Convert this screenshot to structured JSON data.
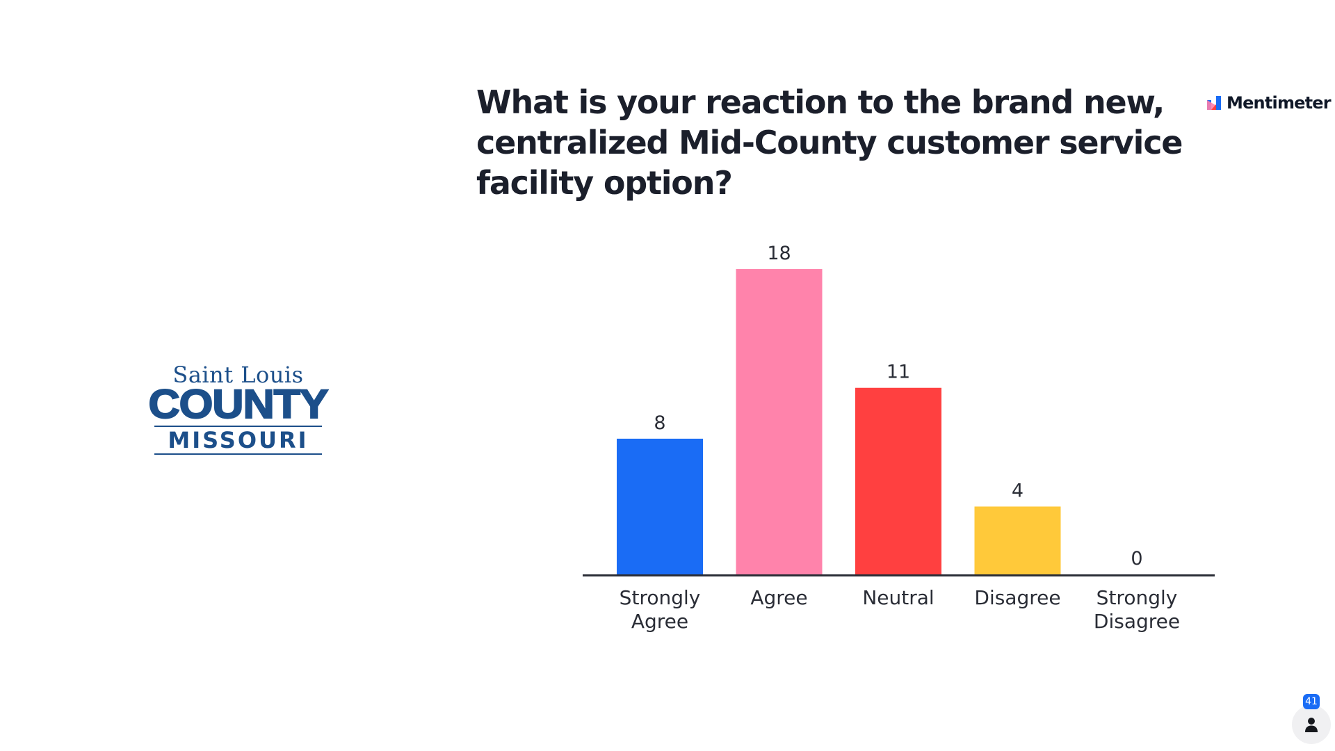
{
  "logo": {
    "line1": "Saint Louis",
    "line2": "COUNTY",
    "line3": "MISSOURI"
  },
  "question": "What is your reaction to the brand new, centralized Mid-County customer service facility option?",
  "brand": {
    "name": "Mentimeter",
    "icon": "mentimeter-logo-icon",
    "icon_colors": [
      "#1a6cf5",
      "#ff7eaa",
      "#ff4040"
    ]
  },
  "participants": {
    "count": "41",
    "icon": "person-icon",
    "badge_color": "#1a6cf5"
  },
  "chart_data": {
    "type": "bar",
    "title": "",
    "xlabel": "",
    "ylabel": "",
    "categories": [
      [
        "Strongly",
        "Agree"
      ],
      [
        "Agree"
      ],
      [
        "Neutral"
      ],
      [
        "Disagree"
      ],
      [
        "Strongly",
        "Disagree"
      ]
    ],
    "values": [
      8,
      18,
      11,
      4,
      0
    ],
    "colors": [
      "#1a6cf5",
      "#ff83ab",
      "#ff4040",
      "#ffc93a",
      "#b9a4ff"
    ],
    "ylim": [
      0,
      18
    ],
    "grid": false,
    "legend": "none",
    "data_labels": true
  }
}
